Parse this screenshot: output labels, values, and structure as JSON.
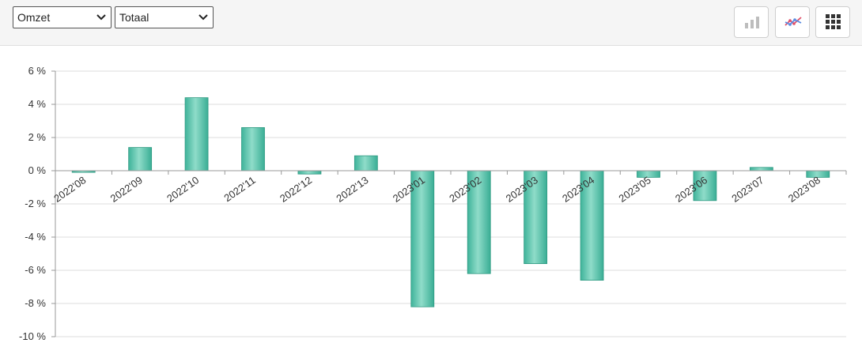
{
  "toolbar": {
    "metric_select": {
      "value": "Omzet"
    },
    "scope_select": {
      "value": "Totaal"
    },
    "buttons": [
      {
        "name": "bar-chart-button",
        "icon": "bar-chart-icon"
      },
      {
        "name": "line-chart-button",
        "icon": "line-chart-icon"
      },
      {
        "name": "grid-view-button",
        "icon": "grid-icon"
      }
    ]
  },
  "chart_data": {
    "type": "bar",
    "categories": [
      "2022'08",
      "2022'09",
      "2022'10",
      "2022'11",
      "2022'12",
      "2022'13",
      "2023'01",
      "2023'02",
      "2023'03",
      "2023'04",
      "2023'05",
      "2023'06",
      "2023'07",
      "2023'08"
    ],
    "values": [
      -0.1,
      1.4,
      4.4,
      2.6,
      -0.2,
      0.9,
      -8.2,
      -6.2,
      -5.6,
      -6.6,
      -0.4,
      -1.8,
      0.2,
      -0.4
    ],
    "ylim": [
      -10,
      6
    ],
    "yticks": [
      6,
      4,
      2,
      0,
      -2,
      -4,
      -6,
      -8,
      -10
    ],
    "ytick_suffix": " %",
    "grid": true,
    "bar_color": "#4fc0a8",
    "title": "",
    "xlabel": "",
    "ylabel": ""
  }
}
